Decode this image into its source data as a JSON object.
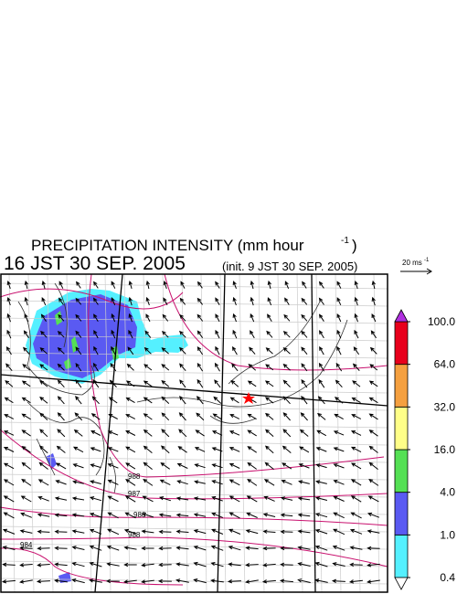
{
  "header": {
    "title": {
      "text": "PRECIPITATION INTENSITY (mm hour",
      "superscript": "-1",
      "suffix": ")"
    },
    "valid_time": "16 JST 30 SEP. 2005",
    "init_time": "(init. 9 JST 30 SEP. 2005)"
  },
  "vector_scale": {
    "text": "20 ms",
    "superscript": "-1"
  },
  "colorbar": {
    "ticks": [
      0.4,
      {
        "value": 1,
        "label": "1.0"
      },
      {
        "value": 4,
        "label": "4.0"
      },
      {
        "value": 16,
        "label": "16.0"
      },
      {
        "value": 32,
        "label": "32.0"
      },
      {
        "value": 64,
        "label": "64.0"
      },
      {
        "value": 100,
        "label": "100.0"
      }
    ],
    "colors": [
      "#55f0ff",
      "#5a5af2",
      "#55e055",
      "#ffff88",
      "#f5a040",
      "#e8001c"
    ],
    "over_color": "#b030e0",
    "under_color": "#ffffff"
  },
  "map": {
    "isobar_labels": [
      988,
      987,
      986,
      988,
      984
    ]
  }
}
